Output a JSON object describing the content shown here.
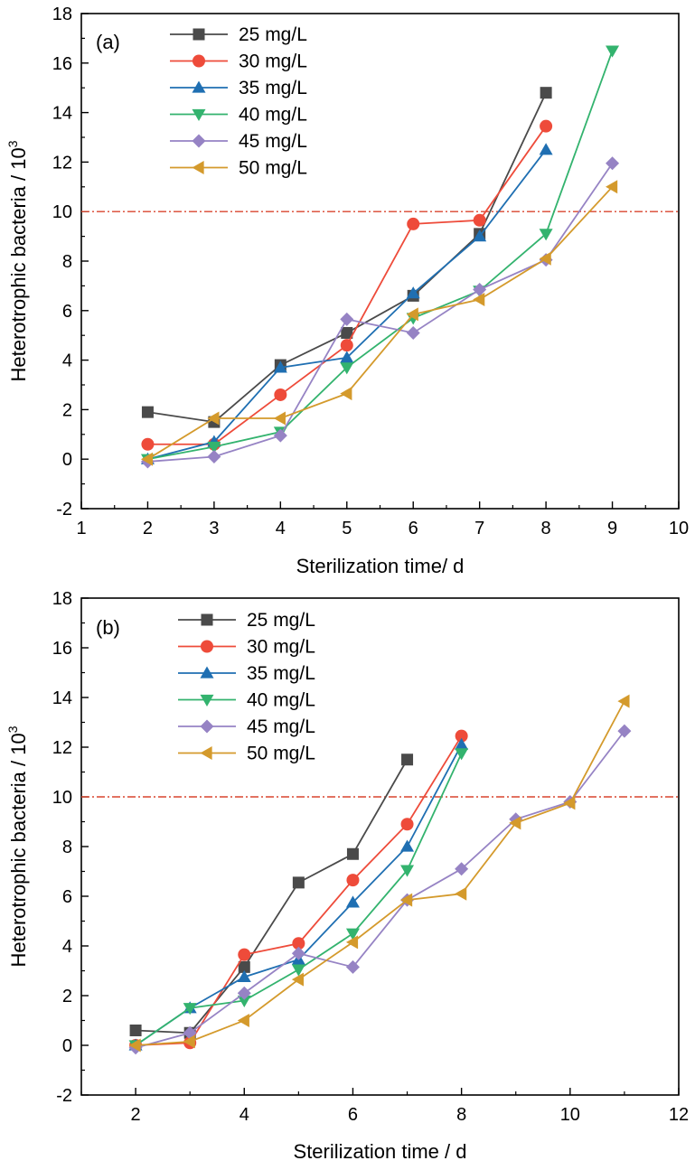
{
  "chart_data": [
    {
      "type": "line",
      "panel_label": "(a)",
      "xlabel": "Sterilization time/ d",
      "ylabel_main": "Heterotrophic bacteria / 10",
      "ylabel_sup": "3",
      "xlim": [
        1,
        10
      ],
      "ylim": [
        -2,
        18
      ],
      "xticks": [
        1,
        2,
        3,
        4,
        5,
        6,
        7,
        8,
        9,
        10
      ],
      "yticks": [
        -2,
        0,
        2,
        4,
        6,
        8,
        10,
        12,
        14,
        16,
        18
      ],
      "threshold": 10,
      "legend_position": "top-left",
      "series": [
        {
          "name": "25 mg/L",
          "color": "#4a4a4a",
          "marker": "square",
          "x": [
            2,
            3,
            4,
            5,
            6,
            7,
            8
          ],
          "y": [
            1.9,
            1.5,
            3.8,
            5.1,
            6.6,
            9.1,
            14.8
          ]
        },
        {
          "name": "30 mg/L",
          "color": "#ee4b3a",
          "marker": "circle",
          "x": [
            2,
            3,
            4,
            5,
            6,
            7,
            8
          ],
          "y": [
            0.6,
            0.6,
            2.6,
            4.6,
            9.5,
            9.65,
            13.45
          ]
        },
        {
          "name": "35 mg/L",
          "color": "#1f6fb2",
          "marker": "triangle-up",
          "x": [
            2,
            3,
            4,
            5,
            6,
            7,
            8
          ],
          "y": [
            0.0,
            0.7,
            3.7,
            4.1,
            6.7,
            9.0,
            12.5
          ]
        },
        {
          "name": "40 mg/L",
          "color": "#33b36e",
          "marker": "triangle-down",
          "x": [
            2,
            3,
            4,
            5,
            6,
            7,
            8,
            9
          ],
          "y": [
            0.0,
            0.5,
            1.1,
            3.7,
            5.7,
            6.8,
            9.1,
            16.5
          ]
        },
        {
          "name": "45 mg/L",
          "color": "#9683c4",
          "marker": "diamond",
          "x": [
            2,
            3,
            4,
            5,
            6,
            7,
            8,
            9
          ],
          "y": [
            -0.1,
            0.1,
            0.95,
            5.65,
            5.1,
            6.85,
            8.05,
            11.95
          ]
        },
        {
          "name": "50 mg/L",
          "color": "#d49a2c",
          "marker": "triangle-left",
          "x": [
            2,
            3,
            4,
            5,
            6,
            7,
            8,
            9
          ],
          "y": [
            0.0,
            1.65,
            1.65,
            2.65,
            5.85,
            6.45,
            8.1,
            11.0
          ]
        }
      ]
    },
    {
      "type": "line",
      "panel_label": "(b)",
      "xlabel": "Sterilization time / d",
      "ylabel_main": "Heterotrophic bacteria / 10",
      "ylabel_sup": "3",
      "xlim": [
        1,
        12
      ],
      "ylim": [
        -2,
        18
      ],
      "xticks": [
        2,
        4,
        6,
        8,
        10,
        12
      ],
      "yticks": [
        -2,
        0,
        2,
        4,
        6,
        8,
        10,
        12,
        14,
        16,
        18
      ],
      "threshold": 10,
      "legend_position": "top-left",
      "series": [
        {
          "name": "25 mg/L",
          "color": "#4a4a4a",
          "marker": "square",
          "x": [
            2,
            3,
            4,
            5,
            6,
            7
          ],
          "y": [
            0.6,
            0.5,
            3.15,
            6.55,
            7.7,
            11.5
          ]
        },
        {
          "name": "30 mg/L",
          "color": "#ee4b3a",
          "marker": "circle",
          "x": [
            2,
            3,
            4,
            5,
            6,
            7,
            8
          ],
          "y": [
            0.0,
            0.1,
            3.65,
            4.1,
            6.65,
            8.9,
            12.45
          ]
        },
        {
          "name": "35 mg/L",
          "color": "#1f6fb2",
          "marker": "triangle-up",
          "x": [
            2,
            3,
            4,
            5,
            6,
            7,
            8
          ],
          "y": [
            0.0,
            1.5,
            2.75,
            3.45,
            5.75,
            8.0,
            12.1
          ]
        },
        {
          "name": "40 mg/L",
          "color": "#33b36e",
          "marker": "triangle-down",
          "x": [
            2,
            3,
            4,
            5,
            6,
            7,
            8
          ],
          "y": [
            0.0,
            1.5,
            1.8,
            3.05,
            4.5,
            7.05,
            11.75
          ]
        },
        {
          "name": "45 mg/L",
          "color": "#9683c4",
          "marker": "diamond",
          "x": [
            2,
            3,
            4,
            5,
            6,
            7,
            8,
            9,
            10,
            11
          ],
          "y": [
            -0.1,
            0.5,
            2.1,
            3.7,
            3.15,
            5.85,
            7.1,
            9.1,
            9.8,
            12.65
          ]
        },
        {
          "name": "50 mg/L",
          "color": "#d49a2c",
          "marker": "triangle-left",
          "x": [
            2,
            3,
            4,
            5,
            6,
            7,
            8,
            9,
            10,
            11
          ],
          "y": [
            0.0,
            0.15,
            1.0,
            2.65,
            4.15,
            5.85,
            6.1,
            8.95,
            9.75,
            13.85
          ]
        }
      ]
    }
  ]
}
